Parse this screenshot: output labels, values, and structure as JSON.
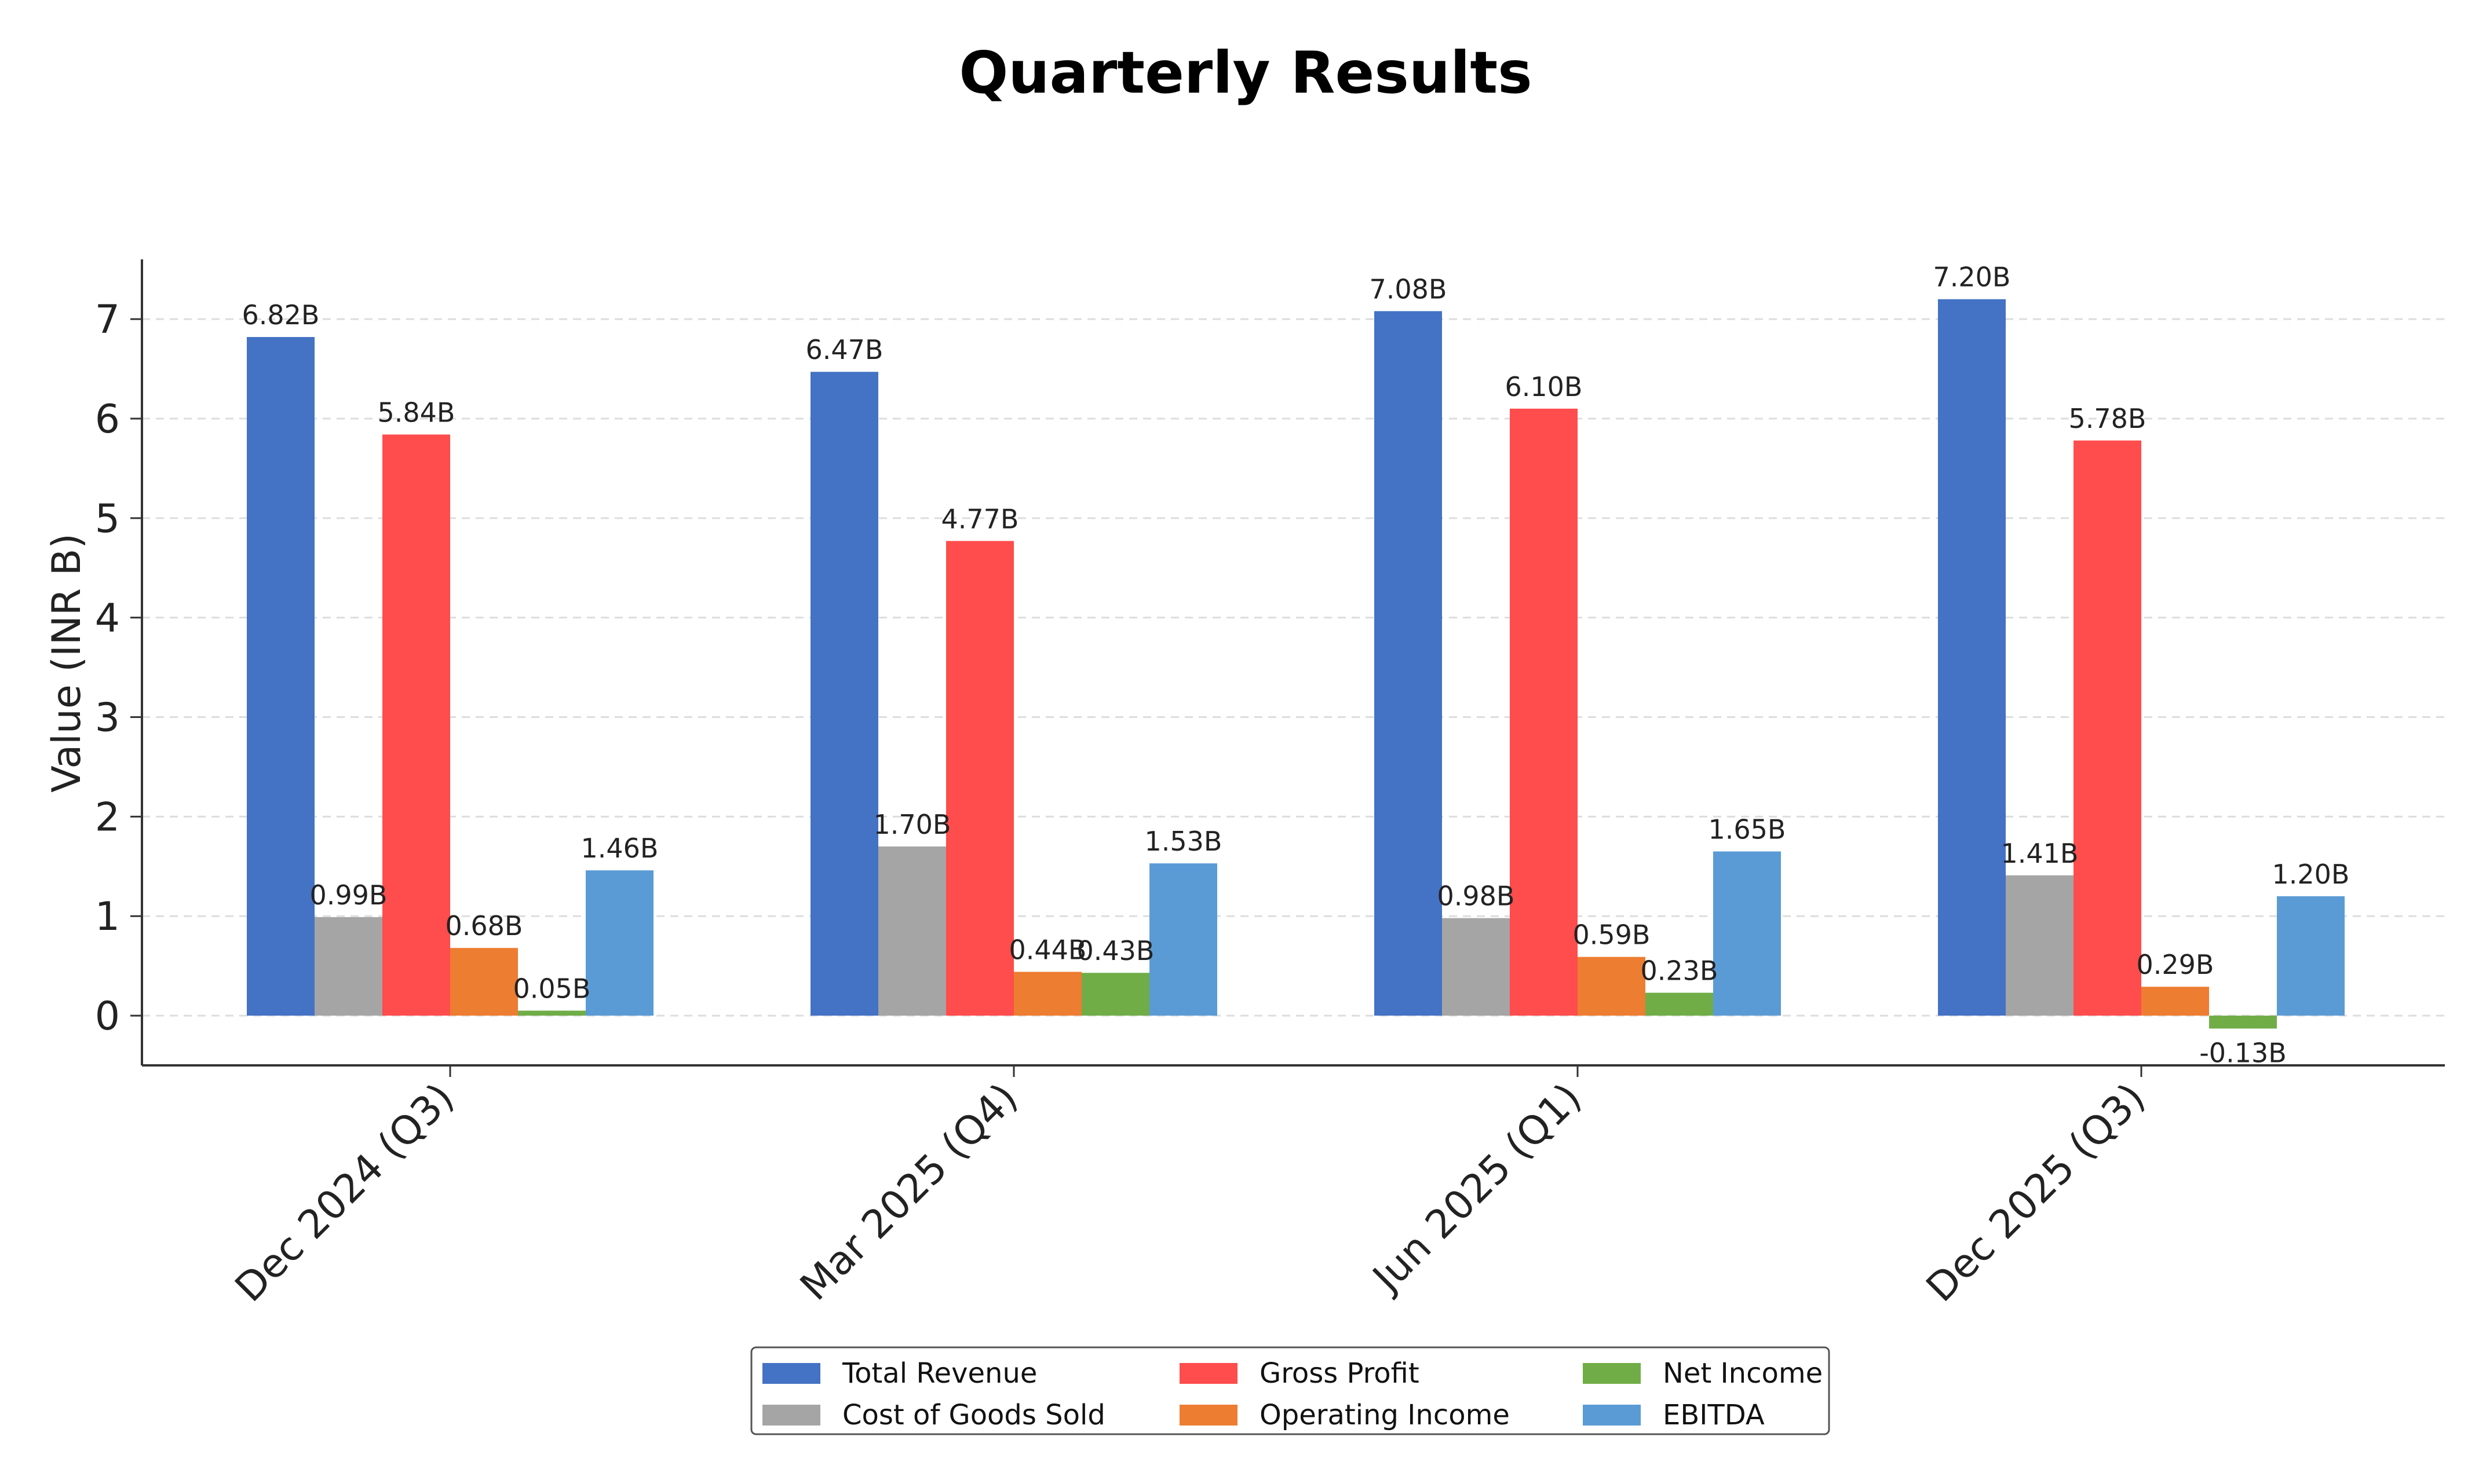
{
  "chart_data": {
    "type": "bar",
    "title": "Quarterly Results",
    "xlabel": "",
    "ylabel": "Value (INR B)",
    "ylim": [
      -0.5,
      7.6
    ],
    "yticks": [
      0,
      1,
      2,
      3,
      4,
      5,
      6,
      7
    ],
    "grid": "y-dashed",
    "legend_position": "bottom-center",
    "categories": [
      "Dec 2024 (Q3)",
      "Mar 2025 (Q4)",
      "Jun 2025 (Q1)",
      "Dec 2025 (Q3)"
    ],
    "series": [
      {
        "name": "Total Revenue",
        "color": "#4472C4",
        "values": [
          6.82,
          6.47,
          7.08,
          7.2
        ],
        "labels": [
          "6.82B",
          "6.47B",
          "7.08B",
          "7.20B"
        ]
      },
      {
        "name": "Cost of Goods Sold",
        "color": "#A5A5A5",
        "values": [
          0.99,
          1.7,
          0.98,
          1.41
        ],
        "labels": [
          "0.99B",
          "1.70B",
          "0.98B",
          "1.41B"
        ]
      },
      {
        "name": "Gross Profit",
        "color": "#FF4C4C",
        "values": [
          5.84,
          4.77,
          6.1,
          5.78
        ],
        "labels": [
          "5.84B",
          "4.77B",
          "6.10B",
          "5.78B"
        ]
      },
      {
        "name": "Operating Income",
        "color": "#ED7D31",
        "values": [
          0.68,
          0.44,
          0.59,
          0.29
        ],
        "labels": [
          "0.68B",
          "0.44B",
          "0.59B",
          "0.29B"
        ]
      },
      {
        "name": "Net Income",
        "color": "#70AD47",
        "values": [
          0.05,
          0.43,
          0.23,
          -0.13
        ],
        "labels": [
          "0.05B",
          "0.43B",
          "0.23B",
          "-0.13B"
        ]
      },
      {
        "name": "EBITDA",
        "color": "#5B9BD5",
        "values": [
          1.46,
          1.53,
          1.65,
          1.2
        ],
        "labels": [
          "1.46B",
          "1.53B",
          "1.65B",
          "1.20B"
        ]
      }
    ]
  }
}
